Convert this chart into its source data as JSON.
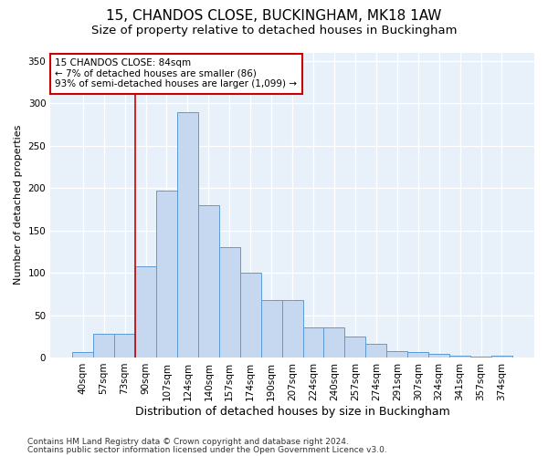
{
  "title1": "15, CHANDOS CLOSE, BUCKINGHAM, MK18 1AW",
  "title2": "Size of property relative to detached houses in Buckingham",
  "xlabel": "Distribution of detached houses by size in Buckingham",
  "ylabel": "Number of detached properties",
  "categories": [
    "40sqm",
    "57sqm",
    "73sqm",
    "90sqm",
    "107sqm",
    "124sqm",
    "140sqm",
    "157sqm",
    "174sqm",
    "190sqm",
    "207sqm",
    "224sqm",
    "240sqm",
    "257sqm",
    "274sqm",
    "291sqm",
    "307sqm",
    "324sqm",
    "341sqm",
    "357sqm",
    "374sqm"
  ],
  "values": [
    6,
    28,
    28,
    108,
    197,
    290,
    180,
    130,
    100,
    68,
    68,
    35,
    35,
    25,
    16,
    8,
    6,
    4,
    2,
    1,
    2
  ],
  "bar_color": "#c5d8f0",
  "bar_edge_color": "#5b9bd5",
  "annotation_text_line1": "15 CHANDOS CLOSE: 84sqm",
  "annotation_text_line2": "← 7% of detached houses are smaller (86)",
  "annotation_text_line3": "93% of semi-detached houses are larger (1,099) →",
  "vline_color": "#cc0000",
  "annotation_box_color": "#ffffff",
  "annotation_box_edge": "#cc0000",
  "footer1": "Contains HM Land Registry data © Crown copyright and database right 2024.",
  "footer2": "Contains public sector information licensed under the Open Government Licence v3.0.",
  "bg_color": "#e8f0fa",
  "ylim": [
    0,
    360
  ],
  "bar_width": 1.0,
  "grid_color": "#ffffff",
  "title1_fontsize": 11,
  "title2_fontsize": 9.5,
  "xlabel_fontsize": 9,
  "ylabel_fontsize": 8,
  "tick_fontsize": 7.5,
  "footer_fontsize": 6.5,
  "vline_x_index": 2.5
}
